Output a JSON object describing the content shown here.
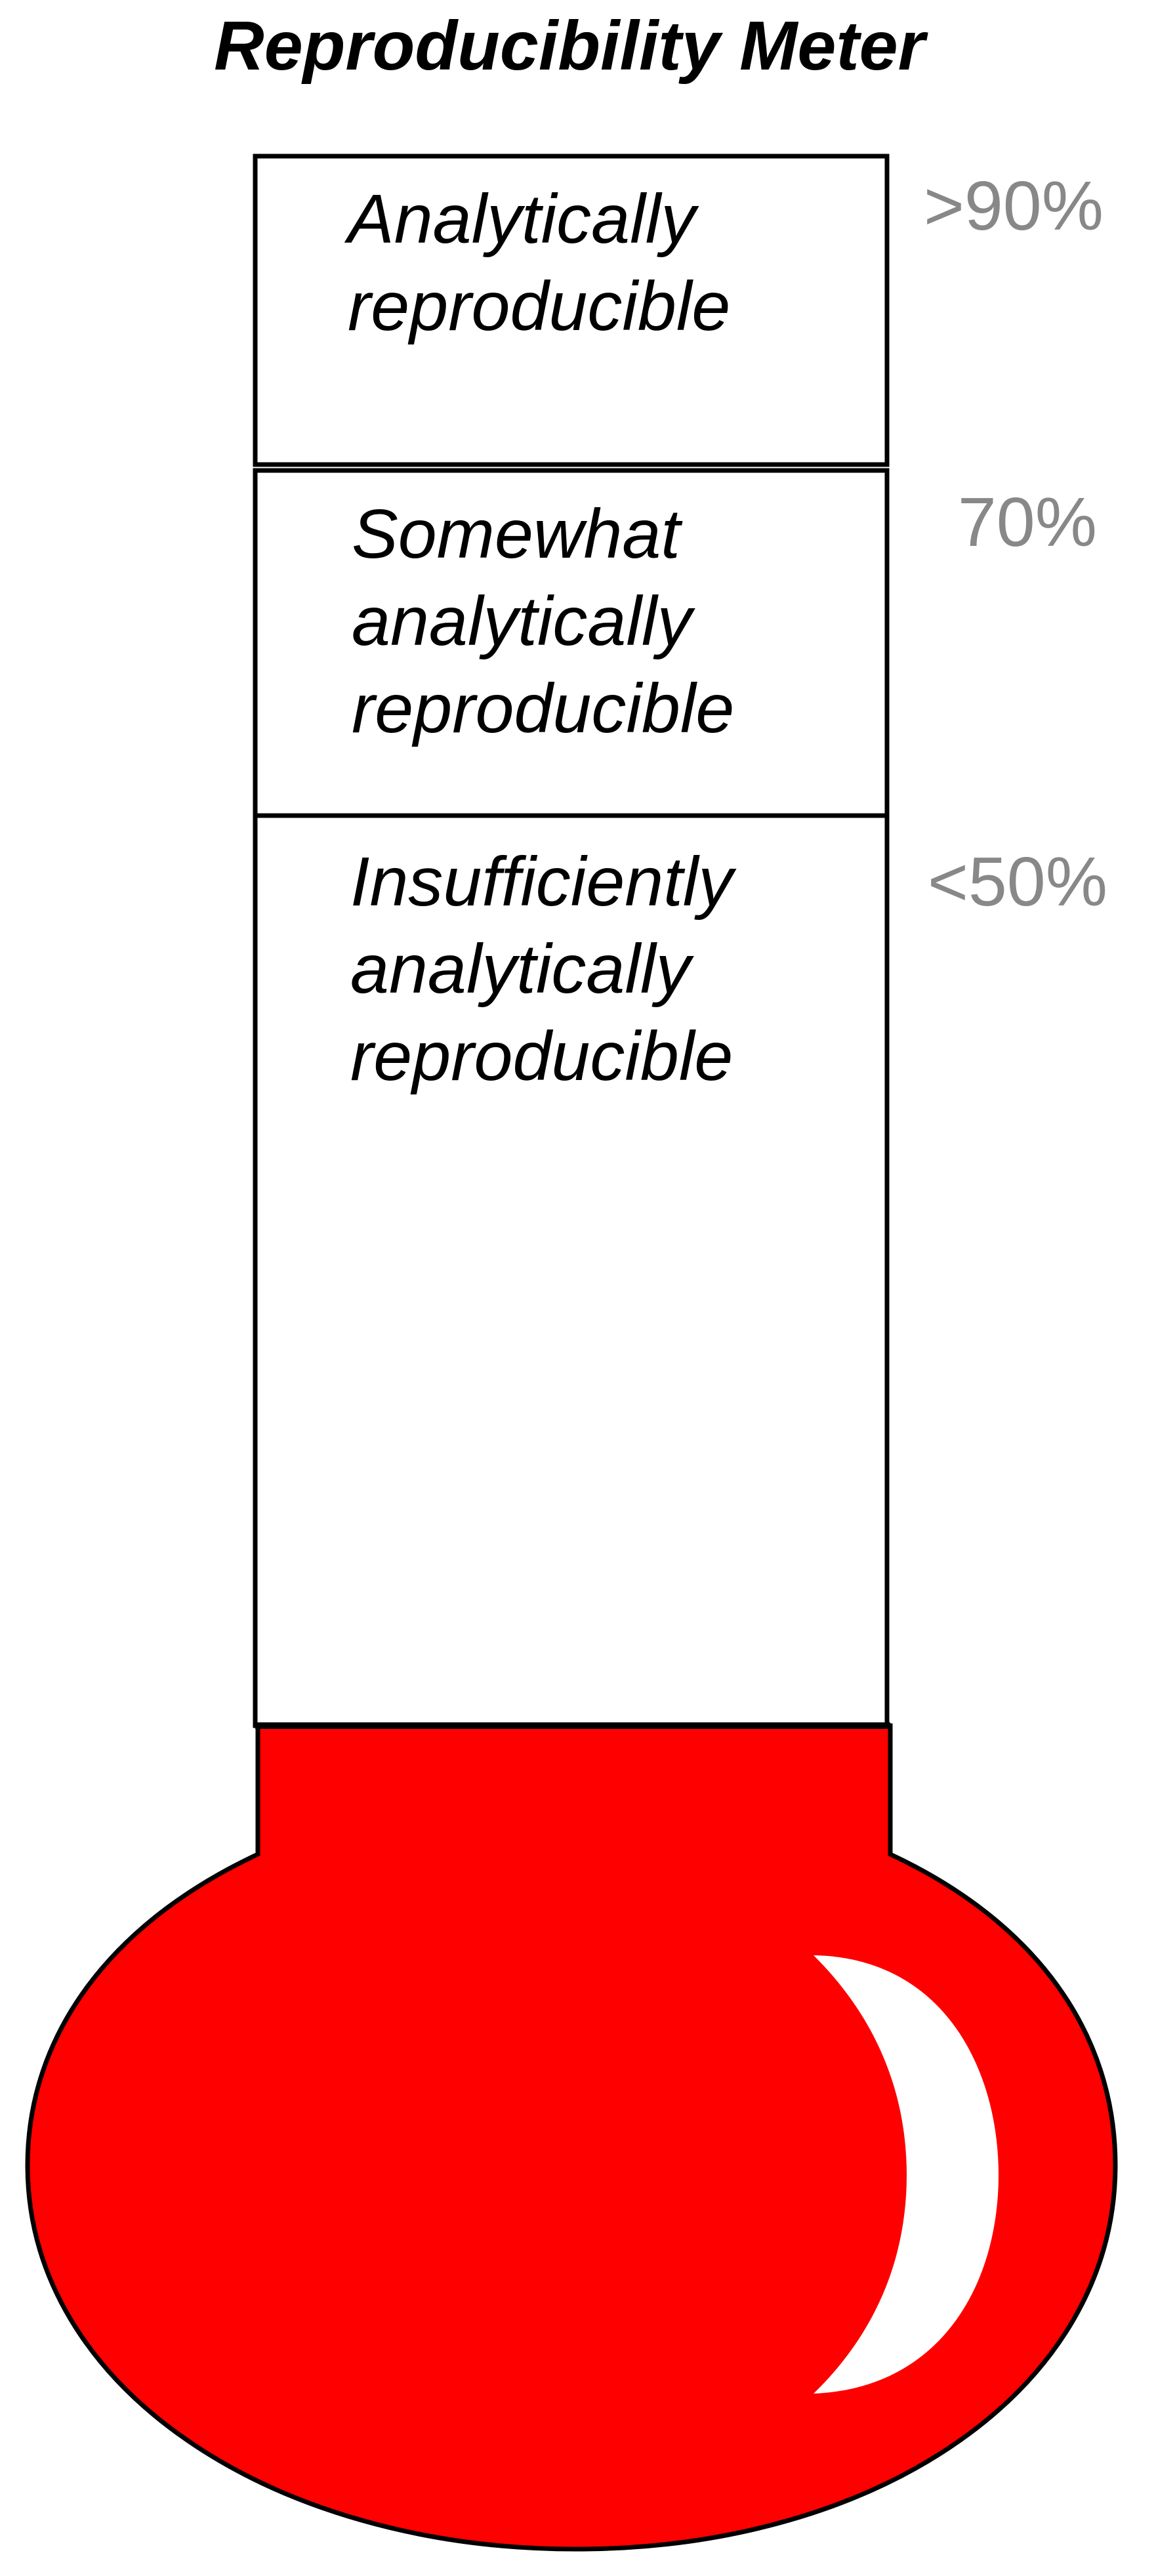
{
  "title": "Reproducibility Meter",
  "zones": [
    {
      "id": "top",
      "lines": [
        "Analytically",
        "reproducible"
      ],
      "threshold": ">90%"
    },
    {
      "id": "middle",
      "lines": [
        "Somewhat",
        "analytically",
        "reproducible"
      ],
      "threshold": "70%"
    },
    {
      "id": "bottom",
      "lines": [
        "Insufficiently",
        "analytically",
        "reproducible"
      ],
      "threshold": "<50%"
    }
  ],
  "colors": {
    "bulb": "#ff0000",
    "outline": "#000000",
    "threshold_text": "#888888",
    "highlight": "#ffffff"
  }
}
